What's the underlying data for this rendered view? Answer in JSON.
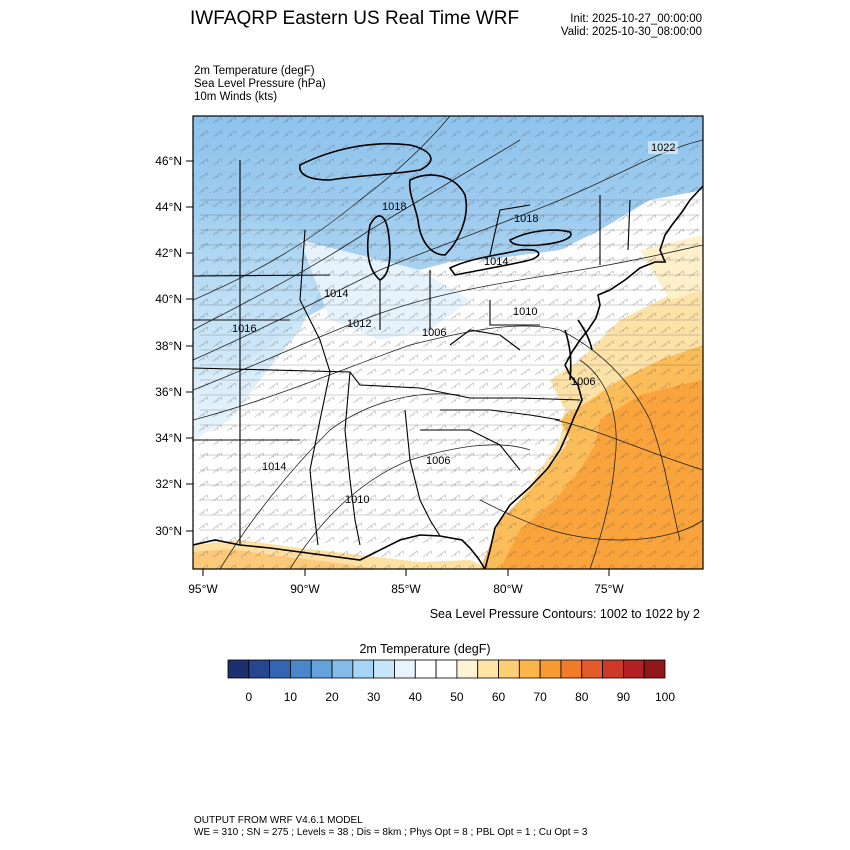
{
  "header": {
    "title": "IWFAQRP Eastern US Real Time WRF",
    "init": "Init: 2025-10-27_00:00:00",
    "valid": "Valid: 2025-10-30_08:00:00"
  },
  "fields": [
    "2m Temperature   (degF)",
    "Sea Level Pressure   (hPa)",
    "10m Winds   (kts)"
  ],
  "map": {
    "lon_ticks": [
      "95°W",
      "90°W",
      "85°W",
      "80°W",
      "75°W"
    ],
    "lat_ticks": [
      "46°N",
      "44°N",
      "42°N",
      "40°N",
      "38°N",
      "36°N",
      "34°N",
      "32°N",
      "30°N"
    ],
    "pressure_labels": [
      "1022",
      "1018",
      "1018",
      "1014",
      "1014",
      "1016",
      "1012",
      "1006",
      "1010",
      "1006",
      "1014",
      "1006",
      "1010"
    ]
  },
  "slp_note": "Sea Level Pressure Contours: 1002 to 1022 by 2",
  "colorbar": {
    "title": "2m Temperature  (degF)",
    "tick_labels": [
      "0",
      "10",
      "20",
      "30",
      "40",
      "50",
      "60",
      "70",
      "80",
      "90",
      "100"
    ],
    "colors": [
      "#1c2f6e",
      "#26478e",
      "#3366b2",
      "#4a86c8",
      "#64a2dc",
      "#84bce8",
      "#a6d4f4",
      "#c8e6fa",
      "#e8f4fd",
      "#ffffff",
      "#ffffff",
      "#fff4d6",
      "#ffe4a6",
      "#fdcf74",
      "#fcb548",
      "#f99a32",
      "#f27b2a",
      "#e55a2a",
      "#cf3a28",
      "#b21f24",
      "#8f1719"
    ]
  },
  "footer": {
    "line1": "OUTPUT FROM WRF V4.6.1 MODEL",
    "line2": "WE = 310 ; SN = 275 ; Levels = 38 ; Dis = 8km ; Phys Opt = 8 ; PBL Opt = 1 ; Cu Opt = 3"
  }
}
